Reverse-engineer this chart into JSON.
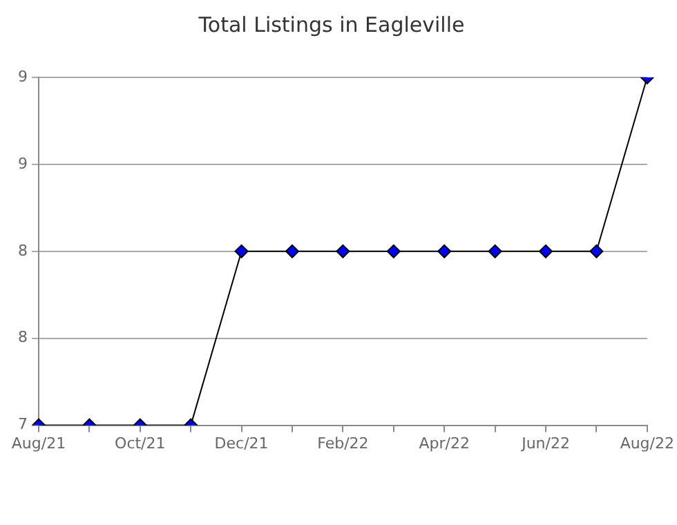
{
  "chart_data": {
    "type": "line",
    "title": "Total Listings in Eagleville",
    "categories": [
      "Aug/21",
      null,
      "Oct/21",
      null,
      "Dec/21",
      null,
      "Feb/22",
      null,
      "Apr/22",
      null,
      "Jun/22",
      null,
      "Aug/22"
    ],
    "series": [
      {
        "color": "#0000ff",
        "values": [
          7,
          7,
          7,
          7,
          8,
          8,
          8,
          8,
          8,
          8,
          8,
          8,
          9
        ]
      }
    ],
    "ylim": [
      7,
      9
    ],
    "yticks": [
      {
        "value": 7,
        "label": "7"
      },
      {
        "value": 7.5,
        "label": "8"
      },
      {
        "value": 8,
        "label": "8"
      },
      {
        "value": 8.5,
        "label": "9"
      },
      {
        "value": 9,
        "label": "9"
      }
    ],
    "grid": "y",
    "legend": false,
    "marker": "diamond",
    "line_style": "solid"
  }
}
